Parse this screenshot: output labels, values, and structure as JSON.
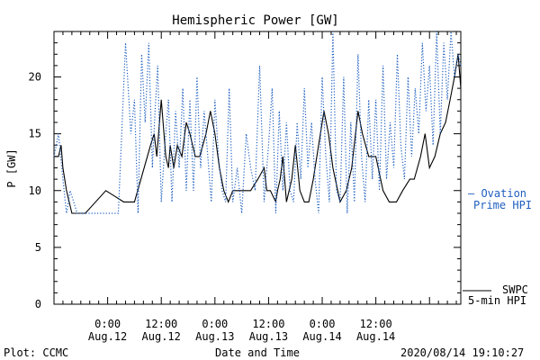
{
  "chart_data": {
    "type": "line",
    "title": "Hemispheric Power [GW]",
    "xlabel": "Date and Time",
    "ylabel": "P [GW]",
    "ylim": [
      0,
      24
    ],
    "xlim": [
      -6,
      39.5
    ],
    "y_ticks": [
      0,
      5,
      10,
      15,
      20
    ],
    "x_ticks": [
      {
        "x": 0,
        "time": "0:00",
        "date": "Aug.12"
      },
      {
        "x": 6,
        "time": "12:00",
        "date": "Aug.12"
      },
      {
        "x": 12,
        "time": "0:00",
        "date": "Aug.13"
      },
      {
        "x": 18,
        "time": "12:00",
        "date": "Aug.13"
      },
      {
        "x": 24,
        "time": "0:00",
        "date": "Aug.14"
      },
      {
        "x": 30,
        "time": "12:00",
        "date": "Aug.14"
      }
    ],
    "x_unit": "hours from 2020-08-12 00:00",
    "grid": false,
    "series": [
      {
        "name": "SWPC 5-min HPI",
        "style": "solid",
        "color": "#000000",
        "x": [
          -6,
          -5.5,
          -5.2,
          -5.0,
          -4.6,
          -4.3,
          -4.0,
          -3.6,
          -3.2,
          -2.5,
          -0.2,
          1.8,
          3.0,
          4.8,
          5.2,
          5.5,
          5.8,
          6.0,
          6.2,
          6.5,
          6.8,
          7.0,
          7.4,
          7.8,
          8.3,
          8.8,
          9.2,
          9.8,
          10.3,
          11.0,
          11.5,
          12.0,
          12.5,
          13.0,
          13.5,
          14.0,
          14.5,
          15.2,
          16.0,
          16.8,
          17.5,
          17.8,
          18.2,
          18.8,
          19.0,
          19.3,
          19.6,
          20.0,
          20.6,
          21.0,
          21.5,
          22.0,
          22.5,
          23.0,
          23.6,
          24.2,
          24.7,
          25.2,
          26.0,
          26.7,
          27.3,
          28.0,
          28.5,
          29.2,
          30.0,
          30.8,
          31.5,
          32.3,
          33.0,
          33.8,
          34.3,
          35.0,
          35.5,
          36.0,
          36.6,
          37.2,
          37.8,
          38.3,
          38.8,
          39.2,
          39.5
        ],
        "y": [
          13,
          13,
          14,
          12,
          10,
          9,
          8,
          8,
          8,
          8,
          10,
          9,
          9,
          14,
          15,
          13,
          16,
          18,
          16,
          13,
          12,
          14,
          12,
          14,
          13,
          16,
          15,
          13,
          13,
          15,
          17,
          15,
          12,
          10,
          9,
          10,
          10,
          10,
          10,
          11,
          12,
          10,
          10,
          9,
          10,
          11,
          13,
          9,
          11,
          14,
          10,
          9,
          9,
          11,
          14,
          17,
          15,
          12,
          9,
          10,
          12,
          17,
          15,
          13,
          13,
          10,
          9,
          9,
          10,
          11,
          11,
          13,
          15,
          12,
          13,
          15,
          16,
          18,
          20,
          22,
          19
        ]
      },
      {
        "name": "Ovation Prime HPI",
        "style": "dotted",
        "color": "#1f5fbf",
        "x": [
          -6,
          -5.5,
          -5.0,
          -4.6,
          -4.2,
          -3.8,
          -3.4,
          -3.0,
          -2.5,
          -0.3,
          0.5,
          1.2,
          2.0,
          2.6,
          3.0,
          3.4,
          3.8,
          4.2,
          4.6,
          5.0,
          5.3,
          5.6,
          6.0,
          6.4,
          6.8,
          7.2,
          7.6,
          8.0,
          8.4,
          8.8,
          9.2,
          9.6,
          10.0,
          10.4,
          10.8,
          11.2,
          11.6,
          12.0,
          12.4,
          12.8,
          13.2,
          13.6,
          14.0,
          14.5,
          15.0,
          15.5,
          16.0,
          16.5,
          17.0,
          17.5,
          18.0,
          18.4,
          18.8,
          19.2,
          19.6,
          20.0,
          20.4,
          20.8,
          21.2,
          21.6,
          22.0,
          22.4,
          22.8,
          23.2,
          23.6,
          24.0,
          24.4,
          24.8,
          25.2,
          25.6,
          26.0,
          26.4,
          26.8,
          27.2,
          27.6,
          28.0,
          28.4,
          28.8,
          29.2,
          29.6,
          30.0,
          30.4,
          30.8,
          31.2,
          31.6,
          32.0,
          32.4,
          32.8,
          33.2,
          33.6,
          34.0,
          34.4,
          34.8,
          35.2,
          35.6,
          36.0,
          36.4,
          36.8,
          37.2,
          37.6,
          38.0,
          38.4,
          38.8,
          39.2,
          39.5
        ],
        "y": [
          13,
          15,
          11,
          8,
          10,
          9,
          8,
          8,
          8,
          8,
          8,
          8,
          23,
          15,
          18,
          8,
          22,
          16,
          23,
          12,
          17,
          21,
          9,
          14,
          18,
          9,
          17,
          12,
          19,
          10,
          18,
          10,
          20,
          12,
          17,
          13,
          9,
          18,
          13,
          10,
          9,
          19,
          9,
          12,
          8,
          15,
          12,
          10,
          21,
          9,
          14,
          19,
          8,
          17,
          10,
          16,
          10,
          9,
          16,
          11,
          19,
          12,
          16,
          11,
          8,
          20,
          13,
          9,
          24,
          10,
          9,
          20,
          8,
          16,
          9,
          22,
          13,
          9,
          18,
          11,
          18,
          10,
          21,
          11,
          16,
          12,
          22,
          14,
          11,
          20,
          13,
          19,
          15,
          23,
          17,
          21,
          14,
          24,
          15,
          23,
          18,
          24,
          20,
          22,
          21
        ]
      }
    ],
    "legend": [
      {
        "label": "– Ovation",
        "label2": "Prime HPI",
        "color": "#1f5fbf",
        "placement": "right-middle"
      },
      {
        "label": "SWPC",
        "label2": "5-min HPI",
        "color": "#000000",
        "placement": "right-bottom"
      }
    ]
  },
  "footer": {
    "plot_credit": "Plot: CCMC",
    "timestamp": "2020/08/14 19:10:27"
  }
}
